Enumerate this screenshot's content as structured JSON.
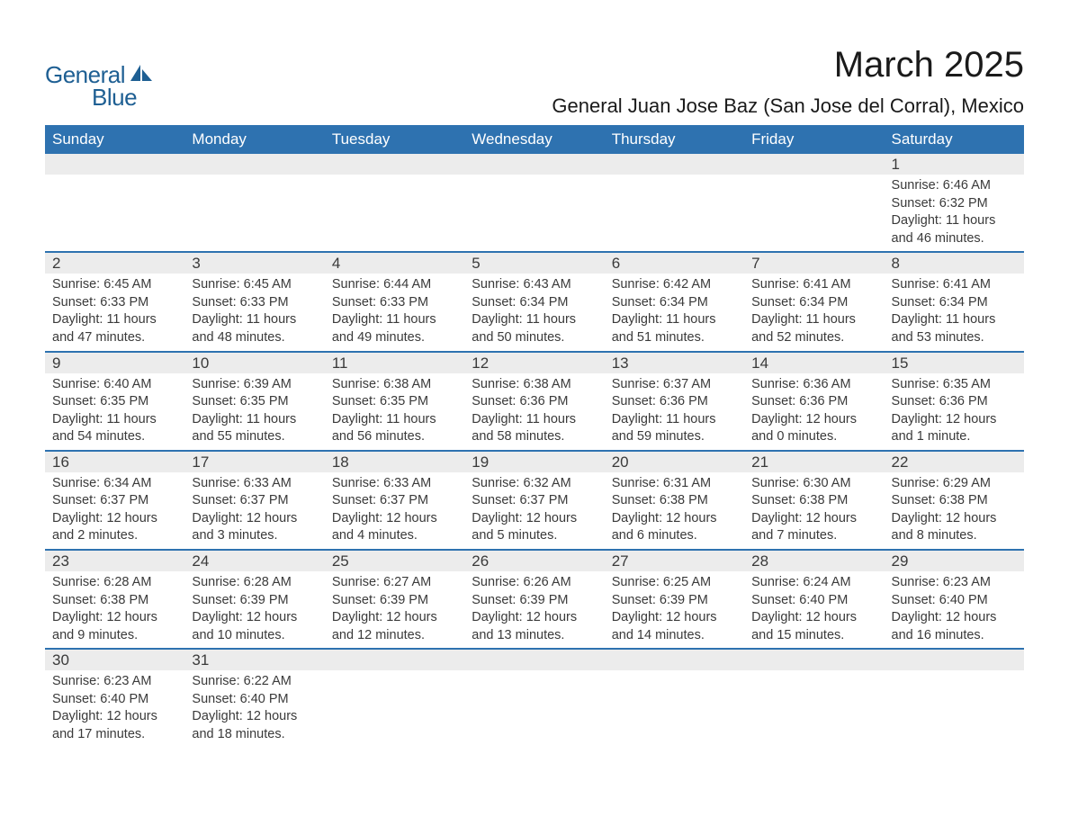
{
  "logo": {
    "text_general": "General",
    "text_blue": "Blue",
    "icon_color": "#1e5f93"
  },
  "header": {
    "month_title": "March 2025",
    "location": "General Juan Jose Baz (San Jose del Corral), Mexico"
  },
  "colors": {
    "header_bg": "#2e72b0",
    "header_text": "#ffffff",
    "row_divider": "#2e72b0",
    "daynum_bg": "#ececec",
    "body_text": "#3a3a3a",
    "page_bg": "#ffffff",
    "logo_color": "#1e5f93"
  },
  "typography": {
    "month_title_fontsize": 40,
    "location_fontsize": 22,
    "dayheader_fontsize": 17,
    "daynum_fontsize": 17,
    "body_fontsize": 14.5,
    "logo_fontsize": 26
  },
  "day_labels": [
    "Sunday",
    "Monday",
    "Tuesday",
    "Wednesday",
    "Thursday",
    "Friday",
    "Saturday"
  ],
  "weeks": [
    [
      {
        "empty": true
      },
      {
        "empty": true
      },
      {
        "empty": true
      },
      {
        "empty": true
      },
      {
        "empty": true
      },
      {
        "empty": true
      },
      {
        "num": "1",
        "sunrise": "Sunrise: 6:46 AM",
        "sunset": "Sunset: 6:32 PM",
        "daylight": "Daylight: 11 hours and 46 minutes."
      }
    ],
    [
      {
        "num": "2",
        "sunrise": "Sunrise: 6:45 AM",
        "sunset": "Sunset: 6:33 PM",
        "daylight": "Daylight: 11 hours and 47 minutes."
      },
      {
        "num": "3",
        "sunrise": "Sunrise: 6:45 AM",
        "sunset": "Sunset: 6:33 PM",
        "daylight": "Daylight: 11 hours and 48 minutes."
      },
      {
        "num": "4",
        "sunrise": "Sunrise: 6:44 AM",
        "sunset": "Sunset: 6:33 PM",
        "daylight": "Daylight: 11 hours and 49 minutes."
      },
      {
        "num": "5",
        "sunrise": "Sunrise: 6:43 AM",
        "sunset": "Sunset: 6:34 PM",
        "daylight": "Daylight: 11 hours and 50 minutes."
      },
      {
        "num": "6",
        "sunrise": "Sunrise: 6:42 AM",
        "sunset": "Sunset: 6:34 PM",
        "daylight": "Daylight: 11 hours and 51 minutes."
      },
      {
        "num": "7",
        "sunrise": "Sunrise: 6:41 AM",
        "sunset": "Sunset: 6:34 PM",
        "daylight": "Daylight: 11 hours and 52 minutes."
      },
      {
        "num": "8",
        "sunrise": "Sunrise: 6:41 AM",
        "sunset": "Sunset: 6:34 PM",
        "daylight": "Daylight: 11 hours and 53 minutes."
      }
    ],
    [
      {
        "num": "9",
        "sunrise": "Sunrise: 6:40 AM",
        "sunset": "Sunset: 6:35 PM",
        "daylight": "Daylight: 11 hours and 54 minutes."
      },
      {
        "num": "10",
        "sunrise": "Sunrise: 6:39 AM",
        "sunset": "Sunset: 6:35 PM",
        "daylight": "Daylight: 11 hours and 55 minutes."
      },
      {
        "num": "11",
        "sunrise": "Sunrise: 6:38 AM",
        "sunset": "Sunset: 6:35 PM",
        "daylight": "Daylight: 11 hours and 56 minutes."
      },
      {
        "num": "12",
        "sunrise": "Sunrise: 6:38 AM",
        "sunset": "Sunset: 6:36 PM",
        "daylight": "Daylight: 11 hours and 58 minutes."
      },
      {
        "num": "13",
        "sunrise": "Sunrise: 6:37 AM",
        "sunset": "Sunset: 6:36 PM",
        "daylight": "Daylight: 11 hours and 59 minutes."
      },
      {
        "num": "14",
        "sunrise": "Sunrise: 6:36 AM",
        "sunset": "Sunset: 6:36 PM",
        "daylight": "Daylight: 12 hours and 0 minutes."
      },
      {
        "num": "15",
        "sunrise": "Sunrise: 6:35 AM",
        "sunset": "Sunset: 6:36 PM",
        "daylight": "Daylight: 12 hours and 1 minute."
      }
    ],
    [
      {
        "num": "16",
        "sunrise": "Sunrise: 6:34 AM",
        "sunset": "Sunset: 6:37 PM",
        "daylight": "Daylight: 12 hours and 2 minutes."
      },
      {
        "num": "17",
        "sunrise": "Sunrise: 6:33 AM",
        "sunset": "Sunset: 6:37 PM",
        "daylight": "Daylight: 12 hours and 3 minutes."
      },
      {
        "num": "18",
        "sunrise": "Sunrise: 6:33 AM",
        "sunset": "Sunset: 6:37 PM",
        "daylight": "Daylight: 12 hours and 4 minutes."
      },
      {
        "num": "19",
        "sunrise": "Sunrise: 6:32 AM",
        "sunset": "Sunset: 6:37 PM",
        "daylight": "Daylight: 12 hours and 5 minutes."
      },
      {
        "num": "20",
        "sunrise": "Sunrise: 6:31 AM",
        "sunset": "Sunset: 6:38 PM",
        "daylight": "Daylight: 12 hours and 6 minutes."
      },
      {
        "num": "21",
        "sunrise": "Sunrise: 6:30 AM",
        "sunset": "Sunset: 6:38 PM",
        "daylight": "Daylight: 12 hours and 7 minutes."
      },
      {
        "num": "22",
        "sunrise": "Sunrise: 6:29 AM",
        "sunset": "Sunset: 6:38 PM",
        "daylight": "Daylight: 12 hours and 8 minutes."
      }
    ],
    [
      {
        "num": "23",
        "sunrise": "Sunrise: 6:28 AM",
        "sunset": "Sunset: 6:38 PM",
        "daylight": "Daylight: 12 hours and 9 minutes."
      },
      {
        "num": "24",
        "sunrise": "Sunrise: 6:28 AM",
        "sunset": "Sunset: 6:39 PM",
        "daylight": "Daylight: 12 hours and 10 minutes."
      },
      {
        "num": "25",
        "sunrise": "Sunrise: 6:27 AM",
        "sunset": "Sunset: 6:39 PM",
        "daylight": "Daylight: 12 hours and 12 minutes."
      },
      {
        "num": "26",
        "sunrise": "Sunrise: 6:26 AM",
        "sunset": "Sunset: 6:39 PM",
        "daylight": "Daylight: 12 hours and 13 minutes."
      },
      {
        "num": "27",
        "sunrise": "Sunrise: 6:25 AM",
        "sunset": "Sunset: 6:39 PM",
        "daylight": "Daylight: 12 hours and 14 minutes."
      },
      {
        "num": "28",
        "sunrise": "Sunrise: 6:24 AM",
        "sunset": "Sunset: 6:40 PM",
        "daylight": "Daylight: 12 hours and 15 minutes."
      },
      {
        "num": "29",
        "sunrise": "Sunrise: 6:23 AM",
        "sunset": "Sunset: 6:40 PM",
        "daylight": "Daylight: 12 hours and 16 minutes."
      }
    ],
    [
      {
        "num": "30",
        "sunrise": "Sunrise: 6:23 AM",
        "sunset": "Sunset: 6:40 PM",
        "daylight": "Daylight: 12 hours and 17 minutes."
      },
      {
        "num": "31",
        "sunrise": "Sunrise: 6:22 AM",
        "sunset": "Sunset: 6:40 PM",
        "daylight": "Daylight: 12 hours and 18 minutes."
      },
      {
        "empty": true
      },
      {
        "empty": true
      },
      {
        "empty": true
      },
      {
        "empty": true
      },
      {
        "empty": true
      }
    ]
  ]
}
